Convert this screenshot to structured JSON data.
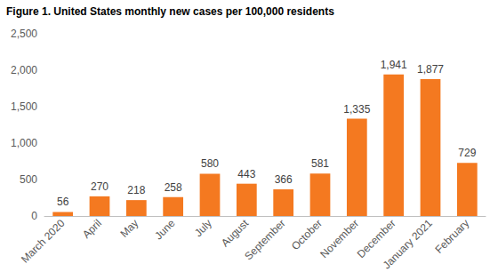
{
  "chart_data": {
    "type": "bar",
    "title": "Figure 1. United States monthly new cases per 100,000 residents",
    "categories": [
      "March 2020",
      "April",
      "May",
      "June",
      "July",
      "August",
      "September",
      "October",
      "November",
      "December",
      "January 2021",
      "February"
    ],
    "values": [
      56,
      270,
      218,
      258,
      580,
      443,
      366,
      581,
      1335,
      1941,
      1877,
      729
    ],
    "value_labels": [
      "56",
      "270",
      "218",
      "258",
      "580",
      "443",
      "366",
      "581",
      "1,335",
      "1,941",
      "1,877",
      "729"
    ],
    "color": "#f47920",
    "ylim": [
      0,
      2500
    ],
    "yticks": [
      0,
      500,
      {
        "value": 1000,
        "label": "1,000"
      },
      {
        "value": 1500,
        "label": "1,500"
      },
      {
        "value": 2000,
        "label": "2,000"
      },
      {
        "value": 2500,
        "label": "2,500"
      }
    ],
    "grid": false,
    "data_labels": true
  }
}
